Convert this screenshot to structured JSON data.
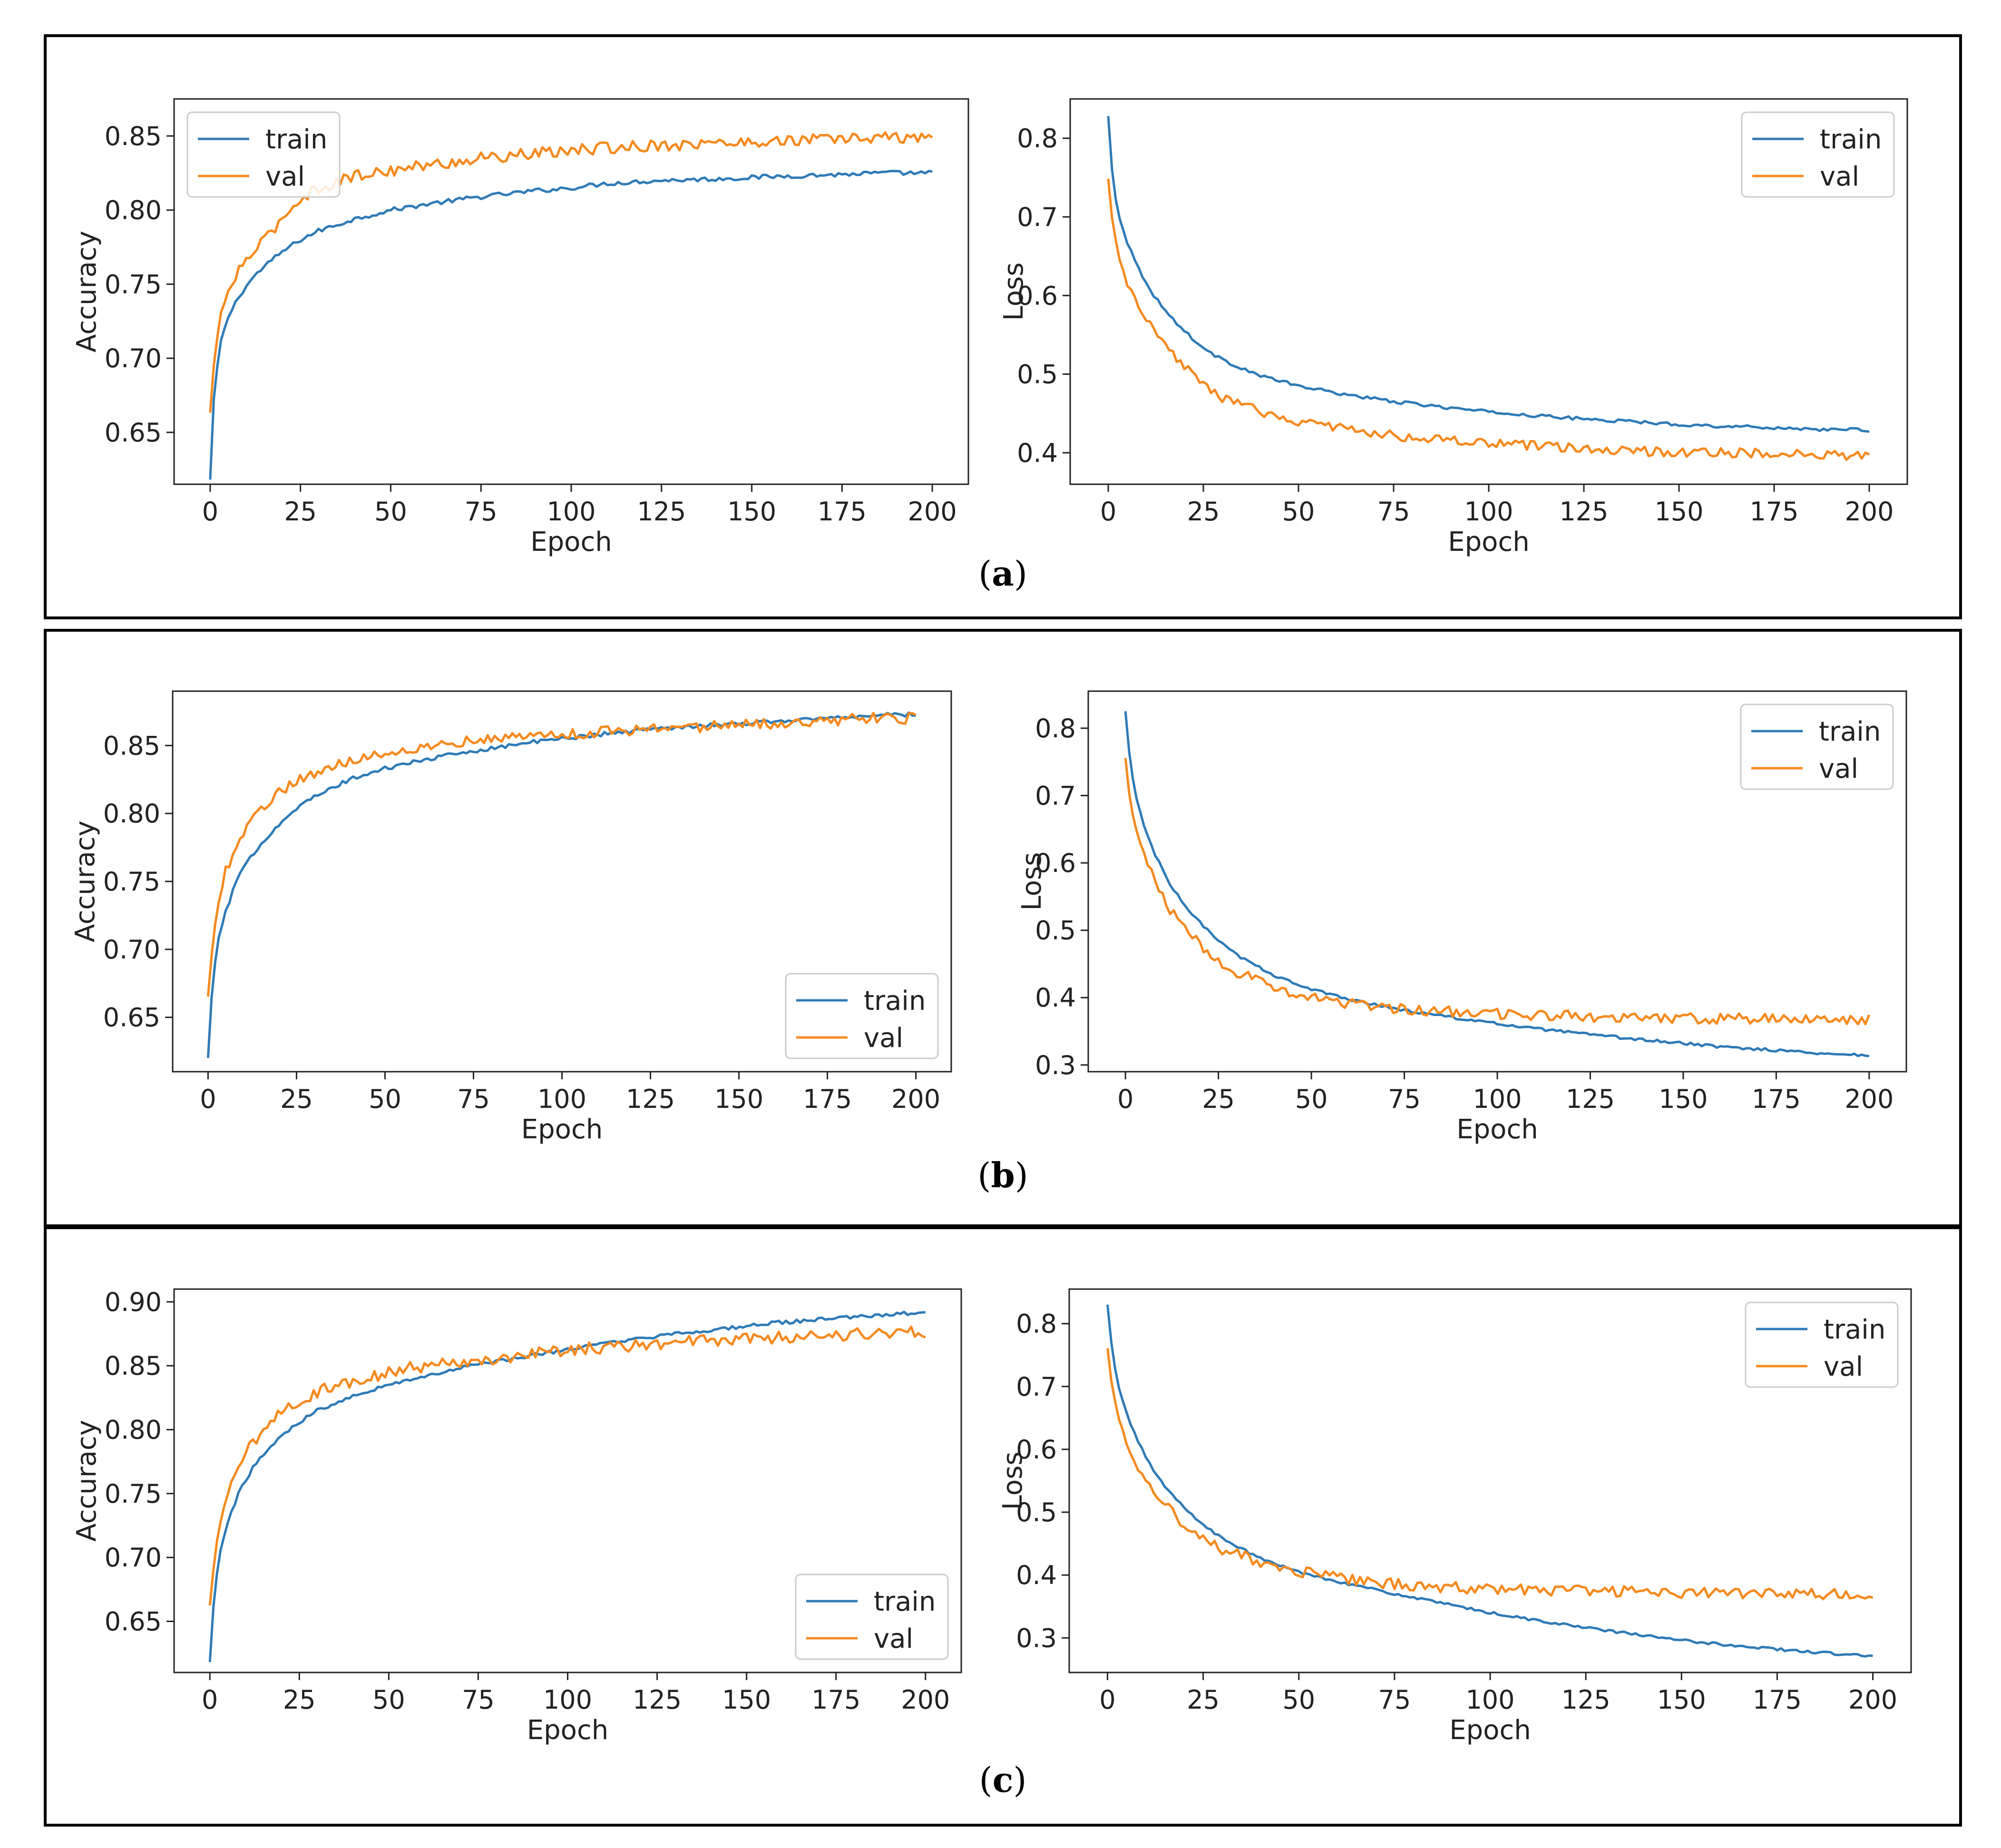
{
  "colors": {
    "train": "#2f7bb6",
    "val": "#f58a1f",
    "frame": "#222222",
    "legend_border": "#cccccc"
  },
  "panels": [
    {
      "id": "a",
      "caption": "a"
    },
    {
      "id": "b",
      "caption": "b"
    },
    {
      "id": "c",
      "caption": "c"
    }
  ],
  "chart_data": [
    {
      "type": "line",
      "panel": "a",
      "metric": "accuracy",
      "title": "",
      "xlabel": "Epoch",
      "ylabel": "Accuracy",
      "xlim": [
        -10,
        210
      ],
      "ylim": [
        0.615,
        0.875
      ],
      "xticks": [
        0,
        25,
        50,
        75,
        100,
        125,
        150,
        175,
        200
      ],
      "xtick_labels": [
        "0",
        "25",
        "50",
        "75",
        "100",
        "125",
        "150",
        "175",
        "200"
      ],
      "yticks": [
        0.65,
        0.7,
        0.75,
        0.8,
        0.85
      ],
      "ytick_labels": [
        "0.65",
        "0.70",
        "0.75",
        "0.80",
        "0.85"
      ],
      "legend": {
        "position": "top-left",
        "entries": [
          "train",
          "val"
        ]
      },
      "series": [
        {
          "name": "train",
          "x": [
            0,
            1,
            2,
            3,
            5,
            8,
            12,
            16,
            20,
            25,
            30,
            40,
            50,
            60,
            75,
            90,
            100,
            110,
            125,
            140,
            150,
            160,
            175,
            185,
            200
          ],
          "y": [
            0.618,
            0.672,
            0.695,
            0.712,
            0.728,
            0.742,
            0.755,
            0.764,
            0.772,
            0.78,
            0.786,
            0.794,
            0.8,
            0.804,
            0.809,
            0.813,
            0.815,
            0.818,
            0.82,
            0.821,
            0.822,
            0.823,
            0.824,
            0.825,
            0.825
          ],
          "noise": 0.0015
        },
        {
          "name": "val",
          "x": [
            0,
            1,
            2,
            3,
            5,
            8,
            12,
            16,
            20,
            25,
            30,
            40,
            50,
            60,
            75,
            90,
            100,
            110,
            125,
            140,
            150,
            160,
            175,
            185,
            200
          ],
          "y": [
            0.663,
            0.695,
            0.715,
            0.73,
            0.745,
            0.76,
            0.772,
            0.782,
            0.795,
            0.808,
            0.815,
            0.823,
            0.827,
            0.83,
            0.835,
            0.838,
            0.84,
            0.842,
            0.844,
            0.845,
            0.846,
            0.847,
            0.848,
            0.849,
            0.849
          ],
          "noise": 0.004
        }
      ]
    },
    {
      "type": "line",
      "panel": "a",
      "metric": "loss",
      "title": "",
      "xlabel": "Epoch",
      "ylabel": "Loss",
      "xlim": [
        -10,
        210
      ],
      "ylim": [
        0.36,
        0.85
      ],
      "xticks": [
        0,
        25,
        50,
        75,
        100,
        125,
        150,
        175,
        200
      ],
      "xtick_labels": [
        "0",
        "25",
        "50",
        "75",
        "100",
        "125",
        "150",
        "175",
        "200"
      ],
      "yticks": [
        0.4,
        0.5,
        0.6,
        0.7,
        0.8
      ],
      "ytick_labels": [
        "0.4",
        "0.5",
        "0.6",
        "0.7",
        "0.8"
      ],
      "legend": {
        "position": "top-right",
        "entries": [
          "train",
          "val"
        ]
      },
      "series": [
        {
          "name": "train",
          "x": [
            0,
            1,
            2,
            3,
            5,
            8,
            12,
            16,
            20,
            25,
            30,
            40,
            50,
            60,
            75,
            90,
            100,
            110,
            125,
            140,
            150,
            160,
            175,
            185,
            200
          ],
          "y": [
            0.828,
            0.76,
            0.722,
            0.698,
            0.668,
            0.634,
            0.6,
            0.575,
            0.555,
            0.533,
            0.518,
            0.498,
            0.485,
            0.476,
            0.465,
            0.457,
            0.452,
            0.448,
            0.443,
            0.439,
            0.436,
            0.434,
            0.432,
            0.43,
            0.429
          ],
          "noise": 0.002
        },
        {
          "name": "val",
          "x": [
            0,
            1,
            2,
            3,
            5,
            8,
            12,
            16,
            20,
            25,
            30,
            40,
            50,
            60,
            75,
            90,
            100,
            110,
            125,
            140,
            150,
            160,
            175,
            185,
            200
          ],
          "y": [
            0.748,
            0.7,
            0.668,
            0.645,
            0.615,
            0.585,
            0.553,
            0.53,
            0.51,
            0.488,
            0.47,
            0.452,
            0.44,
            0.432,
            0.422,
            0.415,
            0.412,
            0.409,
            0.405,
            0.402,
            0.401,
            0.4,
            0.399,
            0.397,
            0.396
          ],
          "noise": 0.006
        }
      ]
    },
    {
      "type": "line",
      "panel": "b",
      "metric": "accuracy",
      "title": "",
      "xlabel": "Epoch",
      "ylabel": "Accuracy",
      "xlim": [
        -10,
        210
      ],
      "ylim": [
        0.61,
        0.89
      ],
      "xticks": [
        0,
        25,
        50,
        75,
        100,
        125,
        150,
        175,
        200
      ],
      "xtick_labels": [
        "0",
        "25",
        "50",
        "75",
        "100",
        "125",
        "150",
        "175",
        "200"
      ],
      "yticks": [
        0.65,
        0.7,
        0.75,
        0.8,
        0.85
      ],
      "ytick_labels": [
        "0.65",
        "0.70",
        "0.75",
        "0.80",
        "0.85"
      ],
      "legend": {
        "position": "bottom-right",
        "entries": [
          "train",
          "val"
        ]
      },
      "series": [
        {
          "name": "train",
          "x": [
            0,
            1,
            2,
            3,
            5,
            8,
            12,
            16,
            20,
            25,
            30,
            40,
            50,
            60,
            75,
            90,
            100,
            110,
            125,
            140,
            150,
            160,
            175,
            185,
            200
          ],
          "y": [
            0.62,
            0.665,
            0.69,
            0.708,
            0.728,
            0.75,
            0.768,
            0.781,
            0.792,
            0.804,
            0.812,
            0.825,
            0.833,
            0.839,
            0.846,
            0.852,
            0.855,
            0.858,
            0.862,
            0.865,
            0.866,
            0.868,
            0.87,
            0.872,
            0.873
          ],
          "noise": 0.0015
        },
        {
          "name": "val",
          "x": [
            0,
            1,
            2,
            3,
            5,
            8,
            12,
            16,
            20,
            25,
            30,
            40,
            50,
            60,
            75,
            90,
            100,
            110,
            125,
            140,
            150,
            160,
            175,
            185,
            200
          ],
          "y": [
            0.665,
            0.695,
            0.718,
            0.735,
            0.757,
            0.778,
            0.795,
            0.806,
            0.815,
            0.824,
            0.83,
            0.839,
            0.845,
            0.849,
            0.854,
            0.857,
            0.858,
            0.86,
            0.862,
            0.864,
            0.865,
            0.866,
            0.868,
            0.87,
            0.87
          ],
          "noise": 0.004
        }
      ]
    },
    {
      "type": "line",
      "panel": "b",
      "metric": "loss",
      "title": "",
      "xlabel": "Epoch",
      "ylabel": "Loss",
      "xlim": [
        -10,
        210
      ],
      "ylim": [
        0.29,
        0.855
      ],
      "xticks": [
        0,
        25,
        50,
        75,
        100,
        125,
        150,
        175,
        200
      ],
      "xtick_labels": [
        "0",
        "25",
        "50",
        "75",
        "100",
        "125",
        "150",
        "175",
        "200"
      ],
      "yticks": [
        0.3,
        0.4,
        0.5,
        0.6,
        0.7,
        0.8
      ],
      "ytick_labels": [
        "0.3",
        "0.4",
        "0.5",
        "0.6",
        "0.7",
        "0.8"
      ],
      "legend": {
        "position": "top-right",
        "entries": [
          "train",
          "val"
        ]
      },
      "series": [
        {
          "name": "train",
          "x": [
            0,
            1,
            2,
            3,
            5,
            8,
            12,
            16,
            20,
            25,
            30,
            40,
            50,
            60,
            75,
            90,
            100,
            110,
            125,
            140,
            150,
            160,
            175,
            185,
            200
          ],
          "y": [
            0.825,
            0.765,
            0.725,
            0.695,
            0.655,
            0.612,
            0.568,
            0.536,
            0.512,
            0.484,
            0.463,
            0.433,
            0.412,
            0.398,
            0.381,
            0.369,
            0.361,
            0.354,
            0.345,
            0.337,
            0.332,
            0.327,
            0.322,
            0.318,
            0.314
          ],
          "noise": 0.002
        },
        {
          "name": "val",
          "x": [
            0,
            1,
            2,
            3,
            5,
            8,
            12,
            16,
            20,
            25,
            30,
            40,
            50,
            60,
            75,
            90,
            100,
            110,
            125,
            140,
            150,
            160,
            175,
            185,
            200
          ],
          "y": [
            0.755,
            0.705,
            0.672,
            0.646,
            0.612,
            0.57,
            0.53,
            0.503,
            0.48,
            0.455,
            0.438,
            0.415,
            0.401,
            0.391,
            0.382,
            0.378,
            0.376,
            0.374,
            0.372,
            0.371,
            0.37,
            0.369,
            0.368,
            0.367,
            0.367
          ],
          "noise": 0.008
        }
      ]
    },
    {
      "type": "line",
      "panel": "c",
      "metric": "accuracy",
      "title": "",
      "xlabel": "Epoch",
      "ylabel": "Accuracy",
      "xlim": [
        -10,
        210
      ],
      "ylim": [
        0.61,
        0.91
      ],
      "xticks": [
        0,
        25,
        50,
        75,
        100,
        125,
        150,
        175,
        200
      ],
      "xtick_labels": [
        "0",
        "25",
        "50",
        "75",
        "100",
        "125",
        "150",
        "175",
        "200"
      ],
      "yticks": [
        0.65,
        0.7,
        0.75,
        0.8,
        0.85,
        0.9
      ],
      "ytick_labels": [
        "0.65",
        "0.70",
        "0.75",
        "0.80",
        "0.85",
        "0.90"
      ],
      "legend": {
        "position": "bottom-right",
        "entries": [
          "train",
          "val"
        ]
      },
      "series": [
        {
          "name": "train",
          "x": [
            0,
            1,
            2,
            3,
            5,
            8,
            12,
            16,
            20,
            25,
            30,
            40,
            50,
            60,
            75,
            90,
            100,
            110,
            125,
            140,
            150,
            160,
            175,
            185,
            200
          ],
          "y": [
            0.618,
            0.662,
            0.688,
            0.706,
            0.728,
            0.75,
            0.77,
            0.784,
            0.795,
            0.806,
            0.815,
            0.827,
            0.835,
            0.842,
            0.851,
            0.858,
            0.863,
            0.867,
            0.873,
            0.878,
            0.881,
            0.884,
            0.887,
            0.889,
            0.892
          ],
          "noise": 0.0015
        },
        {
          "name": "val",
          "x": [
            0,
            1,
            2,
            3,
            5,
            8,
            12,
            16,
            20,
            25,
            30,
            40,
            50,
            60,
            75,
            90,
            100,
            110,
            125,
            140,
            150,
            160,
            175,
            185,
            200
          ],
          "y": [
            0.662,
            0.69,
            0.712,
            0.728,
            0.75,
            0.772,
            0.79,
            0.803,
            0.813,
            0.822,
            0.83,
            0.838,
            0.845,
            0.85,
            0.855,
            0.859,
            0.862,
            0.864,
            0.867,
            0.87,
            0.871,
            0.872,
            0.874,
            0.875,
            0.876
          ],
          "noise": 0.005
        }
      ]
    },
    {
      "type": "line",
      "panel": "c",
      "metric": "loss",
      "title": "",
      "xlabel": "Epoch",
      "ylabel": "Loss",
      "xlim": [
        -10,
        210
      ],
      "ylim": [
        0.245,
        0.855
      ],
      "xticks": [
        0,
        25,
        50,
        75,
        100,
        125,
        150,
        175,
        200
      ],
      "xtick_labels": [
        "0",
        "25",
        "50",
        "75",
        "100",
        "125",
        "150",
        "175",
        "200"
      ],
      "yticks": [
        0.3,
        0.4,
        0.5,
        0.6,
        0.7,
        0.8
      ],
      "ytick_labels": [
        "0.3",
        "0.4",
        "0.5",
        "0.6",
        "0.7",
        "0.8"
      ],
      "legend": {
        "position": "top-right",
        "entries": [
          "train",
          "val"
        ]
      },
      "series": [
        {
          "name": "train",
          "x": [
            0,
            1,
            2,
            3,
            5,
            8,
            12,
            16,
            20,
            25,
            30,
            40,
            50,
            60,
            75,
            90,
            100,
            110,
            125,
            140,
            150,
            160,
            175,
            185,
            200
          ],
          "y": [
            0.83,
            0.77,
            0.728,
            0.697,
            0.657,
            0.612,
            0.566,
            0.533,
            0.508,
            0.48,
            0.458,
            0.426,
            0.405,
            0.39,
            0.37,
            0.352,
            0.34,
            0.33,
            0.316,
            0.304,
            0.296,
            0.29,
            0.282,
            0.277,
            0.271
          ],
          "noise": 0.002
        },
        {
          "name": "val",
          "x": [
            0,
            1,
            2,
            3,
            5,
            8,
            12,
            16,
            20,
            25,
            30,
            40,
            50,
            60,
            75,
            90,
            100,
            110,
            125,
            140,
            150,
            160,
            175,
            185,
            200
          ],
          "y": [
            0.76,
            0.71,
            0.676,
            0.65,
            0.615,
            0.575,
            0.534,
            0.505,
            0.482,
            0.459,
            0.442,
            0.42,
            0.405,
            0.395,
            0.385,
            0.38,
            0.378,
            0.376,
            0.374,
            0.373,
            0.372,
            0.371,
            0.37,
            0.369,
            0.368
          ],
          "noise": 0.009
        }
      ]
    }
  ]
}
